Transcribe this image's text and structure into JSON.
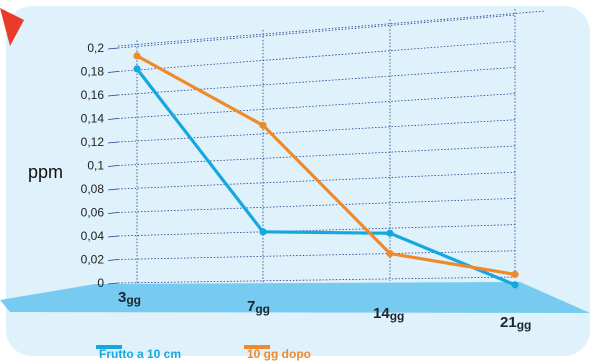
{
  "chart_data": {
    "type": "line",
    "ylabel": "ppm",
    "ylim": [
      0,
      0.2
    ],
    "y_ticks": [
      "0",
      "0,02",
      "0,04",
      "0,06",
      "0,08",
      "0,1",
      "0,12",
      "0,14",
      "0,16",
      "0,18",
      "0,2"
    ],
    "categories": [
      {
        "num": "3",
        "unit": "gg"
      },
      {
        "num": "7",
        "unit": "gg"
      },
      {
        "num": "14",
        "unit": "gg"
      },
      {
        "num": "21",
        "unit": "gg"
      }
    ],
    "series": [
      {
        "name": "Frutto a 10 cm",
        "color": "#15a8de",
        "values": [
          0.181,
          0.04,
          0.036,
          -0.006
        ]
      },
      {
        "name": "10 gg dopo",
        "color": "#ef8a2b",
        "values": [
          0.192,
          0.127,
          0.02,
          0.002
        ]
      }
    ],
    "grid": true,
    "legend_position": "bottom-left"
  },
  "colors": {
    "panel": "#dff1fb",
    "floor": "#6bc6ee",
    "grid": "#1f3e8c",
    "arrow": "#e83b2a"
  }
}
